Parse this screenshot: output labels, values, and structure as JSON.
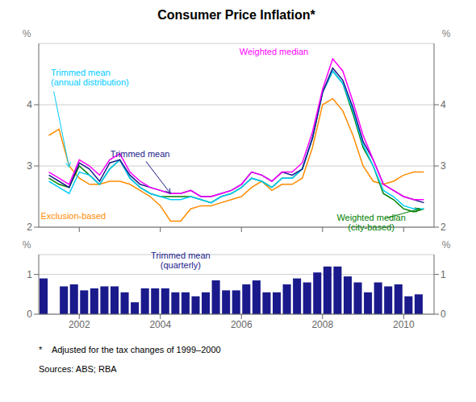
{
  "chart_data": [
    {
      "type": "line",
      "title": "Consumer Price Inflation*",
      "footnote": "*    Adjusted for the tax changes of 1999–2000",
      "sources": "Sources: ABS; RBA",
      "x": [
        2001.25,
        2001.5,
        2001.75,
        2002.0,
        2002.25,
        2002.5,
        2002.75,
        2003.0,
        2003.25,
        2003.5,
        2003.75,
        2004.0,
        2004.25,
        2004.5,
        2004.75,
        2005.0,
        2005.25,
        2005.5,
        2005.75,
        2006.0,
        2006.25,
        2006.5,
        2006.75,
        2007.0,
        2007.25,
        2007.5,
        2007.75,
        2008.0,
        2008.25,
        2008.5,
        2008.75,
        2009.0,
        2009.25,
        2009.5,
        2009.75,
        2010.0,
        2010.25,
        2010.5
      ],
      "series": [
        {
          "name": "Exclusion-based",
          "color": "#ff8c00",
          "values": [
            3.5,
            3.6,
            3.0,
            2.8,
            2.7,
            2.7,
            2.75,
            2.75,
            2.7,
            2.6,
            2.5,
            2.35,
            2.1,
            2.1,
            2.3,
            2.35,
            2.35,
            2.4,
            2.45,
            2.5,
            2.65,
            2.75,
            2.6,
            2.7,
            2.7,
            2.8,
            3.3,
            4.0,
            4.1,
            3.9,
            3.5,
            3.0,
            2.75,
            2.7,
            2.75,
            2.85,
            2.9,
            2.9
          ],
          "annotation": {
            "x": 2001.05,
            "y": 2.18
          }
        },
        {
          "name": "Weighted median\n(city-based)",
          "color": "#008000",
          "values": [
            2.8,
            2.7,
            2.65,
            3.0,
            2.85,
            2.7,
            2.95,
            3.1,
            2.8,
            2.65,
            2.55,
            2.5,
            2.5,
            2.5,
            2.5,
            2.45,
            2.4,
            2.5,
            2.55,
            2.65,
            2.8,
            2.75,
            2.65,
            2.8,
            2.8,
            2.95,
            3.45,
            4.2,
            4.55,
            4.35,
            3.85,
            3.3,
            3.0,
            2.55,
            2.45,
            2.3,
            2.25,
            2.3
          ],
          "annotation": {
            "x": 2009.2,
            "y": 2.08,
            "arrow_x": 2010.4,
            "arrow_y": 2.3
          }
        },
        {
          "name": "Trimmed mean\n(annual distribution)",
          "color": "#00ccff",
          "values": [
            2.75,
            2.65,
            2.55,
            2.9,
            2.85,
            2.7,
            2.95,
            3.1,
            2.8,
            2.65,
            2.55,
            2.5,
            2.45,
            2.45,
            2.5,
            2.45,
            2.4,
            2.5,
            2.55,
            2.65,
            2.8,
            2.75,
            2.65,
            2.8,
            2.8,
            2.95,
            3.45,
            4.2,
            4.55,
            4.35,
            3.9,
            3.35,
            3.0,
            2.6,
            2.5,
            2.35,
            2.3,
            2.3
          ],
          "annotation": {
            "x": 2001.3,
            "y": 4.45,
            "arrow_x": 2001.75,
            "arrow_y": 2.98
          }
        },
        {
          "name": "Trimmed mean",
          "color": "#1a1a8c",
          "values": [
            2.85,
            2.75,
            2.65,
            3.05,
            2.95,
            2.75,
            3.05,
            3.1,
            2.85,
            2.7,
            2.65,
            2.6,
            2.55,
            2.55,
            2.6,
            2.5,
            2.5,
            2.55,
            2.6,
            2.7,
            2.9,
            2.85,
            2.75,
            2.9,
            2.85,
            2.95,
            3.45,
            4.2,
            4.6,
            4.4,
            3.95,
            3.4,
            3.1,
            2.7,
            2.6,
            2.5,
            2.45,
            2.4
          ],
          "annotation": {
            "x": 2003.5,
            "y": 3.2,
            "arrow_x": 2004.25,
            "arrow_y": 2.55
          }
        },
        {
          "name": "Weighted median",
          "color": "#ff00ff",
          "values": [
            2.9,
            2.8,
            2.7,
            3.1,
            3.0,
            2.85,
            3.1,
            3.2,
            2.9,
            2.75,
            2.65,
            2.6,
            2.55,
            2.55,
            2.6,
            2.5,
            2.5,
            2.55,
            2.6,
            2.7,
            2.9,
            2.85,
            2.75,
            2.9,
            2.9,
            3.05,
            3.55,
            4.25,
            4.75,
            4.55,
            4.05,
            3.5,
            3.1,
            2.7,
            2.6,
            2.5,
            2.45,
            2.45
          ],
          "annotation": {
            "x": 2006.8,
            "y": 4.87
          }
        }
      ],
      "xlim": [
        2001.0,
        2010.75
      ],
      "xticks": [
        2002,
        2004,
        2006,
        2008,
        2010
      ],
      "ylim": [
        2.0,
        5.0
      ],
      "yticks": [
        2,
        3,
        4
      ],
      "y2lim": [
        2.0,
        5.0
      ],
      "y2ticks": [
        2,
        3,
        4
      ],
      "ylabel": "%",
      "y2label": "%",
      "grid": true,
      "tick_labels": "y"
    },
    {
      "type": "bar",
      "x": [
        2001.125,
        2001.375,
        2001.625,
        2001.875,
        2002.125,
        2002.375,
        2002.625,
        2002.875,
        2003.125,
        2003.375,
        2003.625,
        2003.875,
        2004.125,
        2004.375,
        2004.625,
        2004.875,
        2005.125,
        2005.375,
        2005.625,
        2005.875,
        2006.125,
        2006.375,
        2006.625,
        2006.875,
        2007.125,
        2007.375,
        2007.625,
        2007.875,
        2008.125,
        2008.375,
        2008.625,
        2008.875,
        2009.125,
        2009.375,
        2009.625,
        2009.875,
        2010.125,
        2010.375
      ],
      "series": [
        {
          "name": "Trimmed mean\n(quarterly)",
          "color": "#1a1a8c",
          "values": [
            0.9,
            0.0,
            0.7,
            0.75,
            0.6,
            0.65,
            0.7,
            0.7,
            0.55,
            0.3,
            0.65,
            0.65,
            0.65,
            0.55,
            0.55,
            0.45,
            0.55,
            0.85,
            0.6,
            0.6,
            0.75,
            0.85,
            0.55,
            0.55,
            0.75,
            0.9,
            0.8,
            1.05,
            1.2,
            1.2,
            0.95,
            0.8,
            0.55,
            0.8,
            0.7,
            0.75,
            0.45,
            0.5
          ],
          "annotation": {
            "x": 2004.5,
            "y": 1.35
          }
        }
      ],
      "xlim": [
        2001.0,
        2010.75
      ],
      "xticks": [
        2002,
        2004,
        2006,
        2008,
        2010
      ],
      "ylim": [
        0,
        1.5
      ],
      "yticks": [
        0,
        1
      ],
      "y2lim": [
        0,
        1.5
      ],
      "y2ticks": [
        0,
        1
      ],
      "ylabel": "%",
      "y2label": "%",
      "grid": true
    }
  ]
}
